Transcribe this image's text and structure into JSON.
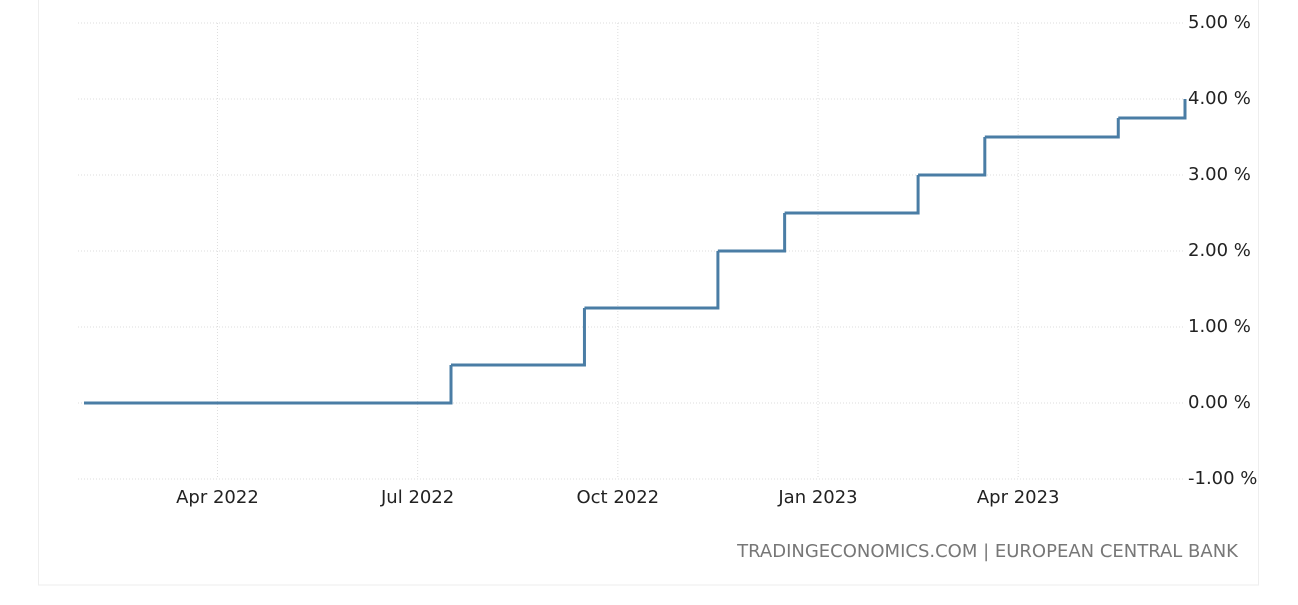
{
  "chart_data": {
    "type": "step",
    "source": "TRADINGECONOMICS.COM | EUROPEAN CENTRAL BANK",
    "x": [
      "2022-02",
      "2022-07",
      "2022-09",
      "2022-11",
      "2022-12",
      "2023-02",
      "2023-03",
      "2023-05",
      "2023-06"
    ],
    "values": [
      0,
      0.5,
      1.25,
      2.0,
      2.5,
      3.0,
      3.5,
      3.75,
      4.0
    ],
    "color": "#4a7da5",
    "xlim": [
      "2022-02",
      "2023-06"
    ],
    "xticks": [
      {
        "value": "2022-04",
        "label": "Apr 2022"
      },
      {
        "value": "2022-07",
        "label": "Jul 2022"
      },
      {
        "value": "2022-10",
        "label": "Oct 2022"
      },
      {
        "value": "2023-01",
        "label": "Jan 2023"
      },
      {
        "value": "2023-04",
        "label": "Apr 2023"
      }
    ],
    "ylim": [
      -1,
      5
    ],
    "yticks": [
      {
        "value": 5,
        "label": "5.00 %"
      },
      {
        "value": 4,
        "label": "4.00 %"
      },
      {
        "value": 3,
        "label": "3.00 %"
      },
      {
        "value": 2,
        "label": "2.00 %"
      },
      {
        "value": 1,
        "label": "1.00 %"
      },
      {
        "value": 0,
        "label": "0.00 %"
      },
      {
        "value": -1,
        "label": "-1.00 %"
      }
    ],
    "grid": true
  }
}
